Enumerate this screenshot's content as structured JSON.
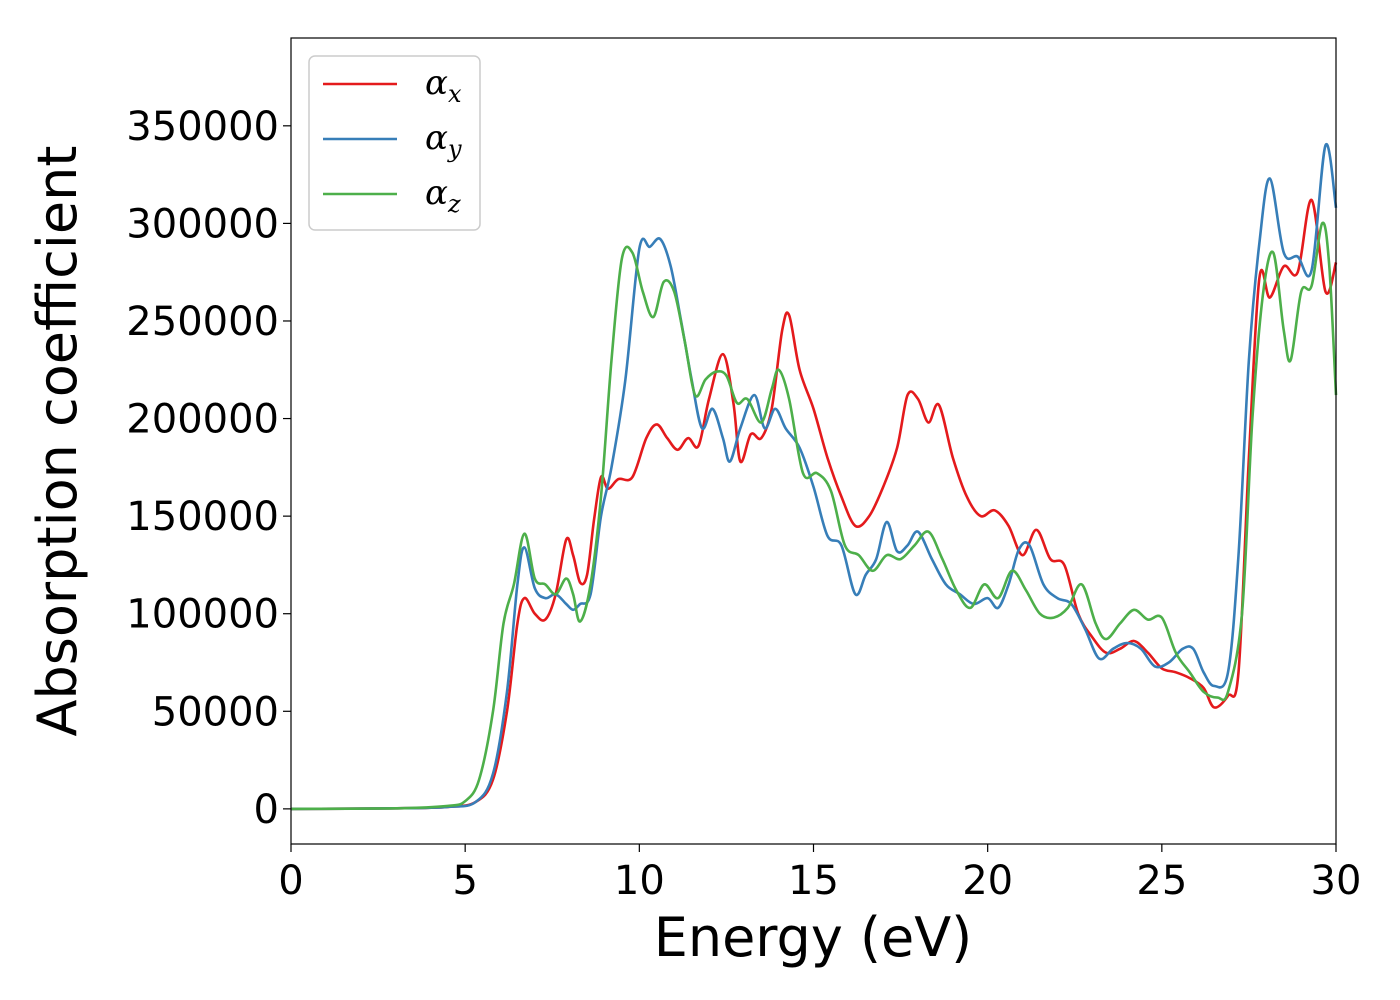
{
  "chart_data": {
    "type": "line",
    "xlabel": "Energy (eV)",
    "ylabel": "Absorption coefficient",
    "xlim": [
      0,
      30
    ],
    "ylim": [
      -18000,
      395000
    ],
    "xticks": [
      0,
      5,
      10,
      15,
      20,
      25,
      30
    ],
    "yticks": [
      0,
      50000,
      100000,
      150000,
      200000,
      250000,
      300000,
      350000
    ],
    "grid": false,
    "legend_position": "top-left",
    "series": [
      {
        "name": "α_x",
        "symbol": "α",
        "subscript": "x",
        "color": "#e41a1c",
        "points": [
          [
            0,
            0
          ],
          [
            3,
            300
          ],
          [
            4.5,
            1000
          ],
          [
            5.3,
            3500
          ],
          [
            5.8,
            15000
          ],
          [
            6.2,
            50000
          ],
          [
            6.5,
            95000
          ],
          [
            6.7,
            108000
          ],
          [
            7.0,
            100000
          ],
          [
            7.3,
            97000
          ],
          [
            7.6,
            110000
          ],
          [
            7.9,
            138000
          ],
          [
            8.1,
            130000
          ],
          [
            8.3,
            116000
          ],
          [
            8.5,
            120000
          ],
          [
            8.7,
            148000
          ],
          [
            8.9,
            170000
          ],
          [
            9.1,
            164000
          ],
          [
            9.4,
            169000
          ],
          [
            9.8,
            170000
          ],
          [
            10.2,
            190000
          ],
          [
            10.5,
            197000
          ],
          [
            10.8,
            190000
          ],
          [
            11.1,
            184000
          ],
          [
            11.4,
            190000
          ],
          [
            11.7,
            186000
          ],
          [
            12.0,
            210000
          ],
          [
            12.4,
            233000
          ],
          [
            12.7,
            208000
          ],
          [
            12.9,
            178000
          ],
          [
            13.2,
            192000
          ],
          [
            13.5,
            190000
          ],
          [
            13.8,
            205000
          ],
          [
            14.1,
            245000
          ],
          [
            14.3,
            253000
          ],
          [
            14.6,
            225000
          ],
          [
            15.0,
            205000
          ],
          [
            15.4,
            180000
          ],
          [
            15.8,
            160000
          ],
          [
            16.2,
            145000
          ],
          [
            16.6,
            150000
          ],
          [
            17.0,
            165000
          ],
          [
            17.4,
            185000
          ],
          [
            17.7,
            212000
          ],
          [
            18.0,
            210000
          ],
          [
            18.3,
            198000
          ],
          [
            18.6,
            207000
          ],
          [
            19.0,
            180000
          ],
          [
            19.4,
            160000
          ],
          [
            19.8,
            150000
          ],
          [
            20.2,
            153000
          ],
          [
            20.6,
            145000
          ],
          [
            21.0,
            130000
          ],
          [
            21.4,
            143000
          ],
          [
            21.8,
            128000
          ],
          [
            22.2,
            125000
          ],
          [
            22.6,
            100000
          ],
          [
            23.0,
            88000
          ],
          [
            23.4,
            80000
          ],
          [
            23.8,
            82000
          ],
          [
            24.2,
            86000
          ],
          [
            24.6,
            80000
          ],
          [
            25.0,
            72000
          ],
          [
            25.4,
            70000
          ],
          [
            25.8,
            67000
          ],
          [
            26.2,
            62000
          ],
          [
            26.5,
            52000
          ],
          [
            26.9,
            58000
          ],
          [
            27.2,
            70000
          ],
          [
            27.5,
            180000
          ],
          [
            27.8,
            272000
          ],
          [
            28.1,
            262000
          ],
          [
            28.5,
            278000
          ],
          [
            28.9,
            275000
          ],
          [
            29.3,
            312000
          ],
          [
            29.7,
            265000
          ],
          [
            30.0,
            280000
          ]
        ]
      },
      {
        "name": "α_y",
        "symbol": "α",
        "subscript": "y",
        "color": "#377eb8",
        "points": [
          [
            0,
            0
          ],
          [
            3,
            300
          ],
          [
            4.5,
            1000
          ],
          [
            5.3,
            3500
          ],
          [
            5.8,
            18000
          ],
          [
            6.2,
            60000
          ],
          [
            6.5,
            115000
          ],
          [
            6.7,
            134000
          ],
          [
            7.0,
            113000
          ],
          [
            7.3,
            108000
          ],
          [
            7.6,
            110000
          ],
          [
            7.9,
            105000
          ],
          [
            8.1,
            102000
          ],
          [
            8.3,
            105000
          ],
          [
            8.6,
            110000
          ],
          [
            8.9,
            150000
          ],
          [
            9.2,
            175000
          ],
          [
            9.6,
            220000
          ],
          [
            10.0,
            287000
          ],
          [
            10.3,
            288000
          ],
          [
            10.6,
            292000
          ],
          [
            10.9,
            278000
          ],
          [
            11.2,
            250000
          ],
          [
            11.5,
            220000
          ],
          [
            11.8,
            195000
          ],
          [
            12.1,
            205000
          ],
          [
            12.4,
            190000
          ],
          [
            12.6,
            178000
          ],
          [
            12.9,
            195000
          ],
          [
            13.3,
            212000
          ],
          [
            13.6,
            195000
          ],
          [
            13.9,
            205000
          ],
          [
            14.2,
            195000
          ],
          [
            14.6,
            185000
          ],
          [
            15.0,
            165000
          ],
          [
            15.4,
            140000
          ],
          [
            15.8,
            135000
          ],
          [
            16.2,
            110000
          ],
          [
            16.5,
            120000
          ],
          [
            16.8,
            128000
          ],
          [
            17.1,
            147000
          ],
          [
            17.4,
            132000
          ],
          [
            17.7,
            135000
          ],
          [
            18.0,
            142000
          ],
          [
            18.4,
            128000
          ],
          [
            18.8,
            115000
          ],
          [
            19.2,
            110000
          ],
          [
            19.6,
            105000
          ],
          [
            20.0,
            108000
          ],
          [
            20.3,
            103000
          ],
          [
            20.6,
            115000
          ],
          [
            20.9,
            133000
          ],
          [
            21.2,
            135000
          ],
          [
            21.6,
            115000
          ],
          [
            22.0,
            108000
          ],
          [
            22.4,
            105000
          ],
          [
            22.8,
            92000
          ],
          [
            23.2,
            77000
          ],
          [
            23.6,
            82000
          ],
          [
            24.0,
            85000
          ],
          [
            24.4,
            82000
          ],
          [
            24.8,
            73000
          ],
          [
            25.2,
            75000
          ],
          [
            25.6,
            82000
          ],
          [
            25.9,
            82000
          ],
          [
            26.2,
            70000
          ],
          [
            26.5,
            63000
          ],
          [
            26.9,
            70000
          ],
          [
            27.2,
            130000
          ],
          [
            27.5,
            230000
          ],
          [
            27.8,
            290000
          ],
          [
            28.1,
            323000
          ],
          [
            28.5,
            285000
          ],
          [
            28.9,
            283000
          ],
          [
            29.3,
            276000
          ],
          [
            29.7,
            340000
          ],
          [
            30.0,
            308000
          ]
        ]
      },
      {
        "name": "α_z",
        "symbol": "α",
        "subscript": "z",
        "color": "#4daf4a",
        "points": [
          [
            0,
            0
          ],
          [
            3,
            300
          ],
          [
            4.5,
            1500
          ],
          [
            5.0,
            4000
          ],
          [
            5.4,
            15000
          ],
          [
            5.8,
            50000
          ],
          [
            6.1,
            95000
          ],
          [
            6.4,
            115000
          ],
          [
            6.7,
            141000
          ],
          [
            7.0,
            118000
          ],
          [
            7.3,
            115000
          ],
          [
            7.6,
            110000
          ],
          [
            7.9,
            118000
          ],
          [
            8.1,
            110000
          ],
          [
            8.3,
            96000
          ],
          [
            8.6,
            115000
          ],
          [
            8.9,
            160000
          ],
          [
            9.2,
            230000
          ],
          [
            9.5,
            282000
          ],
          [
            9.8,
            285000
          ],
          [
            10.1,
            265000
          ],
          [
            10.4,
            252000
          ],
          [
            10.7,
            270000
          ],
          [
            11.0,
            265000
          ],
          [
            11.3,
            240000
          ],
          [
            11.6,
            212000
          ],
          [
            11.9,
            220000
          ],
          [
            12.2,
            224000
          ],
          [
            12.5,
            222000
          ],
          [
            12.8,
            208000
          ],
          [
            13.1,
            210000
          ],
          [
            13.5,
            198000
          ],
          [
            13.8,
            215000
          ],
          [
            14.0,
            225000
          ],
          [
            14.3,
            210000
          ],
          [
            14.7,
            172000
          ],
          [
            15.1,
            172000
          ],
          [
            15.5,
            163000
          ],
          [
            15.9,
            135000
          ],
          [
            16.3,
            130000
          ],
          [
            16.7,
            122000
          ],
          [
            17.1,
            130000
          ],
          [
            17.5,
            128000
          ],
          [
            17.9,
            135000
          ],
          [
            18.3,
            142000
          ],
          [
            18.7,
            128000
          ],
          [
            19.1,
            112000
          ],
          [
            19.5,
            103000
          ],
          [
            19.9,
            115000
          ],
          [
            20.3,
            108000
          ],
          [
            20.7,
            122000
          ],
          [
            21.1,
            112000
          ],
          [
            21.5,
            100000
          ],
          [
            21.9,
            98000
          ],
          [
            22.3,
            103000
          ],
          [
            22.7,
            115000
          ],
          [
            23.1,
            95000
          ],
          [
            23.4,
            87000
          ],
          [
            23.8,
            95000
          ],
          [
            24.2,
            102000
          ],
          [
            24.6,
            97000
          ],
          [
            25.0,
            98000
          ],
          [
            25.4,
            80000
          ],
          [
            25.8,
            70000
          ],
          [
            26.2,
            60000
          ],
          [
            26.6,
            57000
          ],
          [
            26.9,
            60000
          ],
          [
            27.3,
            100000
          ],
          [
            27.6,
            200000
          ],
          [
            27.9,
            263000
          ],
          [
            28.2,
            285000
          ],
          [
            28.5,
            245000
          ],
          [
            28.7,
            230000
          ],
          [
            29.0,
            265000
          ],
          [
            29.3,
            268000
          ],
          [
            29.6,
            300000
          ],
          [
            29.8,
            280000
          ],
          [
            30.0,
            212000
          ]
        ]
      }
    ]
  }
}
